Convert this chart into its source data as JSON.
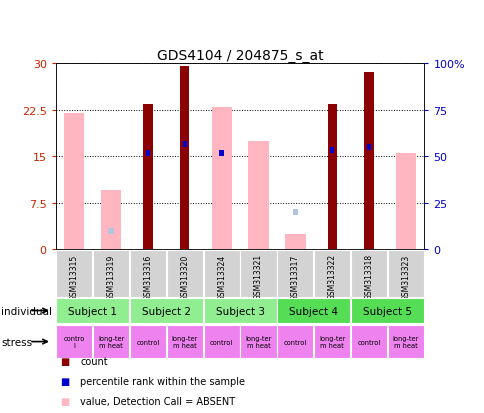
{
  "title": "GDS4104 / 204875_s_at",
  "samples": [
    "GSM313315",
    "GSM313319",
    "GSM313316",
    "GSM313320",
    "GSM313324",
    "GSM313321",
    "GSM313317",
    "GSM313322",
    "GSM313318",
    "GSM313323"
  ],
  "count_values": [
    0,
    0,
    23.5,
    29.5,
    0,
    0,
    0,
    23.5,
    28.5,
    0
  ],
  "value_absent": [
    22.0,
    9.5,
    0,
    0,
    23.0,
    17.5,
    2.5,
    0,
    0,
    15.5
  ],
  "rank_absent_left": [
    0,
    3.0,
    0,
    0,
    0,
    0,
    6.0,
    0,
    0,
    0
  ],
  "pct_rank_left": [
    0,
    0,
    15.5,
    17.0,
    15.5,
    0,
    0,
    16.0,
    16.5,
    0
  ],
  "ylim_left": [
    0,
    30
  ],
  "ylim_right": [
    0,
    100
  ],
  "yticks_left": [
    0,
    7.5,
    15,
    22.5,
    30
  ],
  "yticks_right": [
    0,
    25,
    50,
    75,
    100
  ],
  "subjects": [
    {
      "label": "Subject 1",
      "cols": [
        0,
        1
      ],
      "color": "#90ee90"
    },
    {
      "label": "Subject 2",
      "cols": [
        2,
        3
      ],
      "color": "#90ee90"
    },
    {
      "label": "Subject 3",
      "cols": [
        4,
        5
      ],
      "color": "#90ee90"
    },
    {
      "label": "Subject 4",
      "cols": [
        6,
        7
      ],
      "color": "#55dd55"
    },
    {
      "label": "Subject 5",
      "cols": [
        8,
        9
      ],
      "color": "#55dd55"
    }
  ],
  "stress_labels": [
    "contro\nl",
    "long-ter\nm heat",
    "control",
    "long-ter\nm heat",
    "control",
    "long-ter\nm heat",
    "control",
    "long-ter\nm heat",
    "control",
    "long-ter\nm heat"
  ],
  "color_count": "#8B0000",
  "color_pct_rank": "#0000CD",
  "color_value_absent": "#FFB6C1",
  "color_rank_absent": "#B0C4DE",
  "bg_sample_row": "#d3d3d3",
  "bg_plot": "#ffffff",
  "axis_left_color": "#cc2200",
  "axis_right_color": "#0000cc",
  "stress_color": "#ee82ee"
}
